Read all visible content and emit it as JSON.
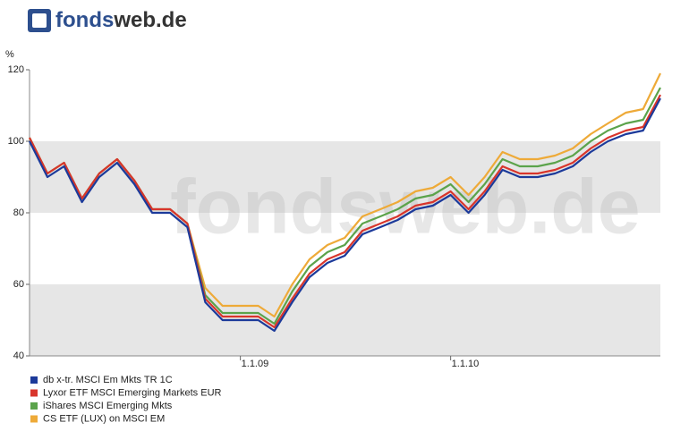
{
  "logo_parts": [
    "fonds",
    "web.de"
  ],
  "chart_data": {
    "type": "line",
    "watermark": "fondsweb.de",
    "y_label": "%",
    "x": [
      "2008-01-01",
      "2008-02-01",
      "2008-03-01",
      "2008-04-01",
      "2008-05-01",
      "2008-06-01",
      "2008-07-01",
      "2008-08-01",
      "2008-09-01",
      "2008-10-01",
      "2008-11-01",
      "2008-12-01",
      "2009-01-01",
      "2009-02-01",
      "2009-03-01",
      "2009-04-01",
      "2009-05-01",
      "2009-06-01",
      "2009-07-01",
      "2009-08-01",
      "2009-09-01",
      "2009-10-01",
      "2009-11-01",
      "2009-12-01",
      "2010-01-01",
      "2010-02-01",
      "2010-03-01",
      "2010-04-01",
      "2010-05-01",
      "2010-06-01",
      "2010-07-01",
      "2010-08-01",
      "2010-09-01",
      "2010-10-01",
      "2010-11-01",
      "2010-12-01",
      "2010-12-31"
    ],
    "series": [
      {
        "name": "db x-tr. MSCI Em Mkts TR 1C",
        "color": "#1c3a9a",
        "values": [
          100,
          90,
          93,
          83,
          90,
          94,
          88,
          80,
          80,
          76,
          55,
          50,
          50,
          50,
          47,
          55,
          62,
          66,
          68,
          74,
          76,
          78,
          81,
          82,
          85,
          80,
          85,
          92,
          90,
          90,
          91,
          93,
          97,
          100,
          102,
          103,
          112
        ]
      },
      {
        "name": "Lyxor ETF MSCI Emerging Markets EUR",
        "color": "#d8352c",
        "values": [
          101,
          91,
          94,
          84,
          91,
          95,
          89,
          81,
          81,
          77,
          56,
          51,
          51,
          51,
          48,
          56,
          63,
          67,
          69,
          75,
          77,
          79,
          82,
          83,
          86,
          81,
          86,
          93,
          91,
          91,
          92,
          94,
          98,
          101,
          103,
          104,
          113
        ]
      },
      {
        "name": "iShares MSCI Emerging Mkts",
        "color": "#5ba34b",
        "values": [
          101,
          91,
          94,
          84,
          91,
          95,
          89,
          81,
          81,
          77,
          57,
          52,
          52,
          52,
          49,
          58,
          65,
          69,
          71,
          77,
          79,
          81,
          84,
          85,
          88,
          83,
          88,
          95,
          93,
          93,
          94,
          96,
          100,
          103,
          105,
          106,
          115
        ]
      },
      {
        "name": "CS ETF (LUX) on MSCI EM",
        "color": "#eeaa38",
        "values": [
          101,
          91,
          94,
          84,
          91,
          95,
          89,
          81,
          81,
          77,
          59,
          54,
          54,
          54,
          51,
          60,
          67,
          71,
          73,
          79,
          81,
          83,
          86,
          87,
          90,
          85,
          90,
          97,
          95,
          95,
          96,
          98,
          102,
          105,
          108,
          109,
          119
        ]
      }
    ],
    "xlim": [
      "2008-01-01",
      "2010-12-31"
    ],
    "xticks": [
      {
        "value": "2009-01-01",
        "label": "1.1.09"
      },
      {
        "value": "2010-01-01",
        "label": "1.1.10"
      }
    ],
    "ylim": [
      40,
      120
    ],
    "yticks": [
      40,
      60,
      80,
      100,
      120
    ],
    "grid": "bands"
  }
}
